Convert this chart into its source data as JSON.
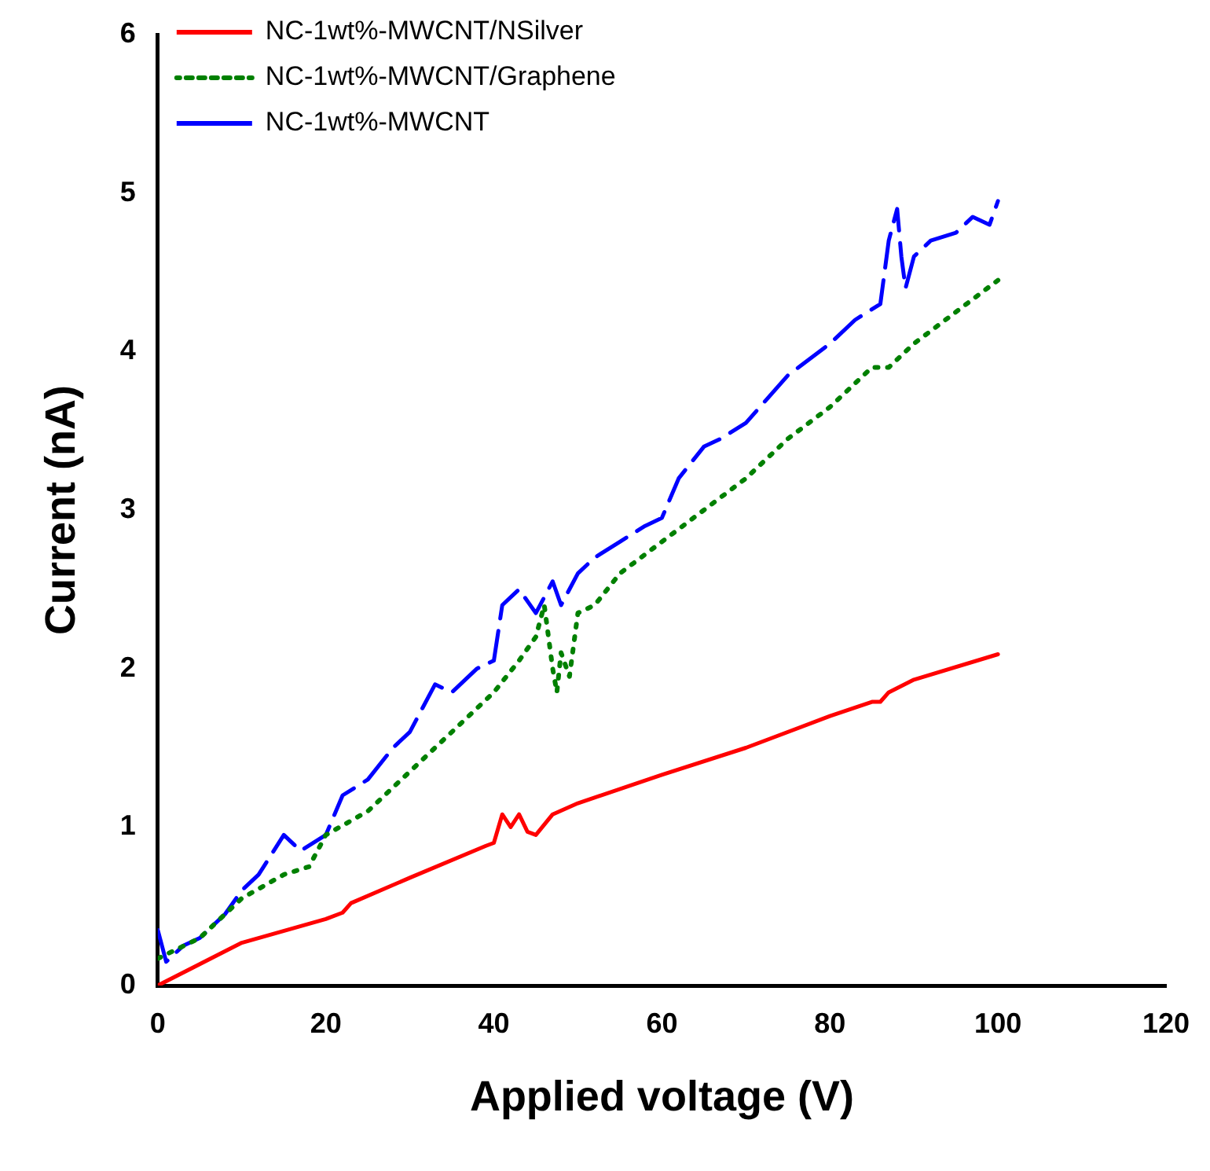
{
  "chart_data": {
    "type": "line",
    "xlabel": "Applied voltage (V)",
    "ylabel": "Current (nA)",
    "xlim": [
      0,
      120
    ],
    "xticks": [
      0,
      20,
      40,
      60,
      80,
      100,
      120
    ],
    "ylim": [
      0,
      6
    ],
    "yticks": [
      0,
      1,
      2,
      3,
      4,
      5,
      6
    ],
    "grid": false,
    "legend": "top left",
    "marker": "none",
    "series": [
      {
        "name": "NC-1wt%-MWCNT/NSilver",
        "color": "#ff0000",
        "line_style": "solid",
        "x": [
          0,
          10,
          20,
          22,
          23,
          30,
          39,
          40,
          41,
          42,
          43,
          44,
          45,
          47,
          50,
          60,
          70,
          80,
          85,
          86,
          87,
          90,
          100
        ],
        "values": [
          0,
          0.27,
          0.42,
          0.46,
          0.52,
          0.68,
          0.88,
          0.9,
          1.08,
          1.0,
          1.08,
          0.97,
          0.95,
          1.08,
          1.15,
          1.33,
          1.5,
          1.7,
          1.79,
          1.79,
          1.85,
          1.93,
          2.09
        ]
      },
      {
        "name": "NC-1wt%-MWCNT/Graphene",
        "color": "#008000",
        "line_style": "dotted",
        "x": [
          0,
          5,
          10,
          15,
          18,
          20,
          25,
          30,
          35,
          40,
          43,
          45,
          46,
          47,
          47.5,
          48,
          49,
          50,
          52,
          55,
          60,
          65,
          70,
          75,
          80,
          85,
          87,
          90,
          95,
          100
        ],
        "values": [
          0.17,
          0.3,
          0.55,
          0.7,
          0.75,
          0.95,
          1.1,
          1.35,
          1.6,
          1.85,
          2.05,
          2.2,
          2.4,
          2.0,
          1.85,
          2.1,
          1.95,
          2.35,
          2.4,
          2.6,
          2.8,
          3.0,
          3.2,
          3.45,
          3.65,
          3.9,
          3.9,
          4.05,
          4.25,
          4.45
        ]
      },
      {
        "name": "NC-1wt%-MWCNT",
        "color": "#0000ff",
        "line_style": "dashed",
        "x": [
          0,
          1,
          3,
          5,
          8,
          10,
          12,
          15,
          17,
          20,
          22,
          25,
          28,
          30,
          33,
          35,
          38,
          40,
          41,
          43,
          45,
          47,
          48,
          50,
          52,
          55,
          58,
          60,
          62,
          65,
          67,
          70,
          75,
          80,
          83,
          86,
          87,
          88,
          88.5,
          89,
          90,
          92,
          95,
          97,
          99,
          100
        ],
        "values": [
          0.35,
          0.15,
          0.25,
          0.3,
          0.45,
          0.6,
          0.7,
          0.95,
          0.85,
          0.95,
          1.2,
          1.3,
          1.5,
          1.6,
          1.9,
          1.85,
          2.0,
          2.05,
          2.4,
          2.5,
          2.35,
          2.55,
          2.4,
          2.6,
          2.7,
          2.8,
          2.9,
          2.95,
          3.2,
          3.4,
          3.45,
          3.55,
          3.85,
          4.05,
          4.2,
          4.3,
          4.7,
          4.9,
          4.6,
          4.4,
          4.6,
          4.7,
          4.75,
          4.85,
          4.8,
          4.95
        ]
      }
    ]
  }
}
